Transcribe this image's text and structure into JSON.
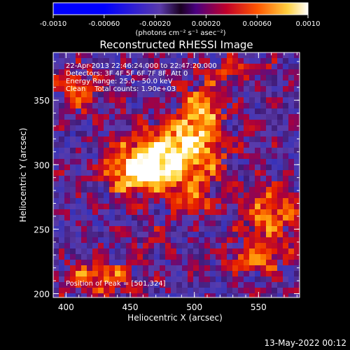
{
  "chart_data": {
    "type": "heatmap",
    "title": "Reconstructed RHESSI Image",
    "xlabel": "Heliocentric X (arcsec)",
    "ylabel": "Heliocentric Y (arcsec)",
    "xlim": [
      390,
      582
    ],
    "ylim": [
      197,
      387
    ],
    "xticks": [
      400,
      450,
      500,
      550
    ],
    "yticks": [
      200,
      250,
      300,
      350
    ],
    "colorbar": {
      "ticks": [
        "-0.0010",
        "-0.00060",
        "-0.00020",
        "0.00020",
        "0.00060",
        "0.0010"
      ],
      "range": [
        -0.001,
        0.001
      ],
      "unit_label": "(photons cm⁻² s⁻¹ asec⁻²)"
    },
    "annotations": [
      "22-Apr-2013 22:46:24.000 to 22:47:20.000",
      "Detectors: 3F 4F 5F 6F 7F 8F, Att 0",
      "Energy Range: 25.0 - 50.0 keV",
      "Clean    Total counts: 1.90e+03",
      "Position of Peak = [501,324]"
    ],
    "peak": {
      "x": 501,
      "y": 324
    },
    "emission_regions": [
      {
        "x": 480,
        "y": 305,
        "sx": 28,
        "sy": 18,
        "amp": 1.0
      },
      {
        "x": 505,
        "y": 340,
        "sx": 12,
        "sy": 16,
        "amp": 0.75
      },
      {
        "x": 455,
        "y": 292,
        "sx": 16,
        "sy": 10,
        "amp": 0.6
      },
      {
        "x": 410,
        "y": 358,
        "sx": 14,
        "sy": 12,
        "amp": 0.45
      },
      {
        "x": 500,
        "y": 270,
        "sx": 10,
        "sy": 8,
        "amp": 0.45
      },
      {
        "x": 560,
        "y": 262,
        "sx": 16,
        "sy": 14,
        "amp": 0.65
      },
      {
        "x": 425,
        "y": 212,
        "sx": 22,
        "sy": 10,
        "amp": 0.55
      },
      {
        "x": 548,
        "y": 227,
        "sx": 20,
        "sy": 10,
        "amp": 0.5
      },
      {
        "x": 530,
        "y": 375,
        "sx": 18,
        "sy": 8,
        "amp": 0.35
      },
      {
        "x": 470,
        "y": 240,
        "sx": 10,
        "sy": 8,
        "amp": 0.3
      }
    ]
  },
  "footer": {
    "date": "13-May-2022 00:12"
  }
}
